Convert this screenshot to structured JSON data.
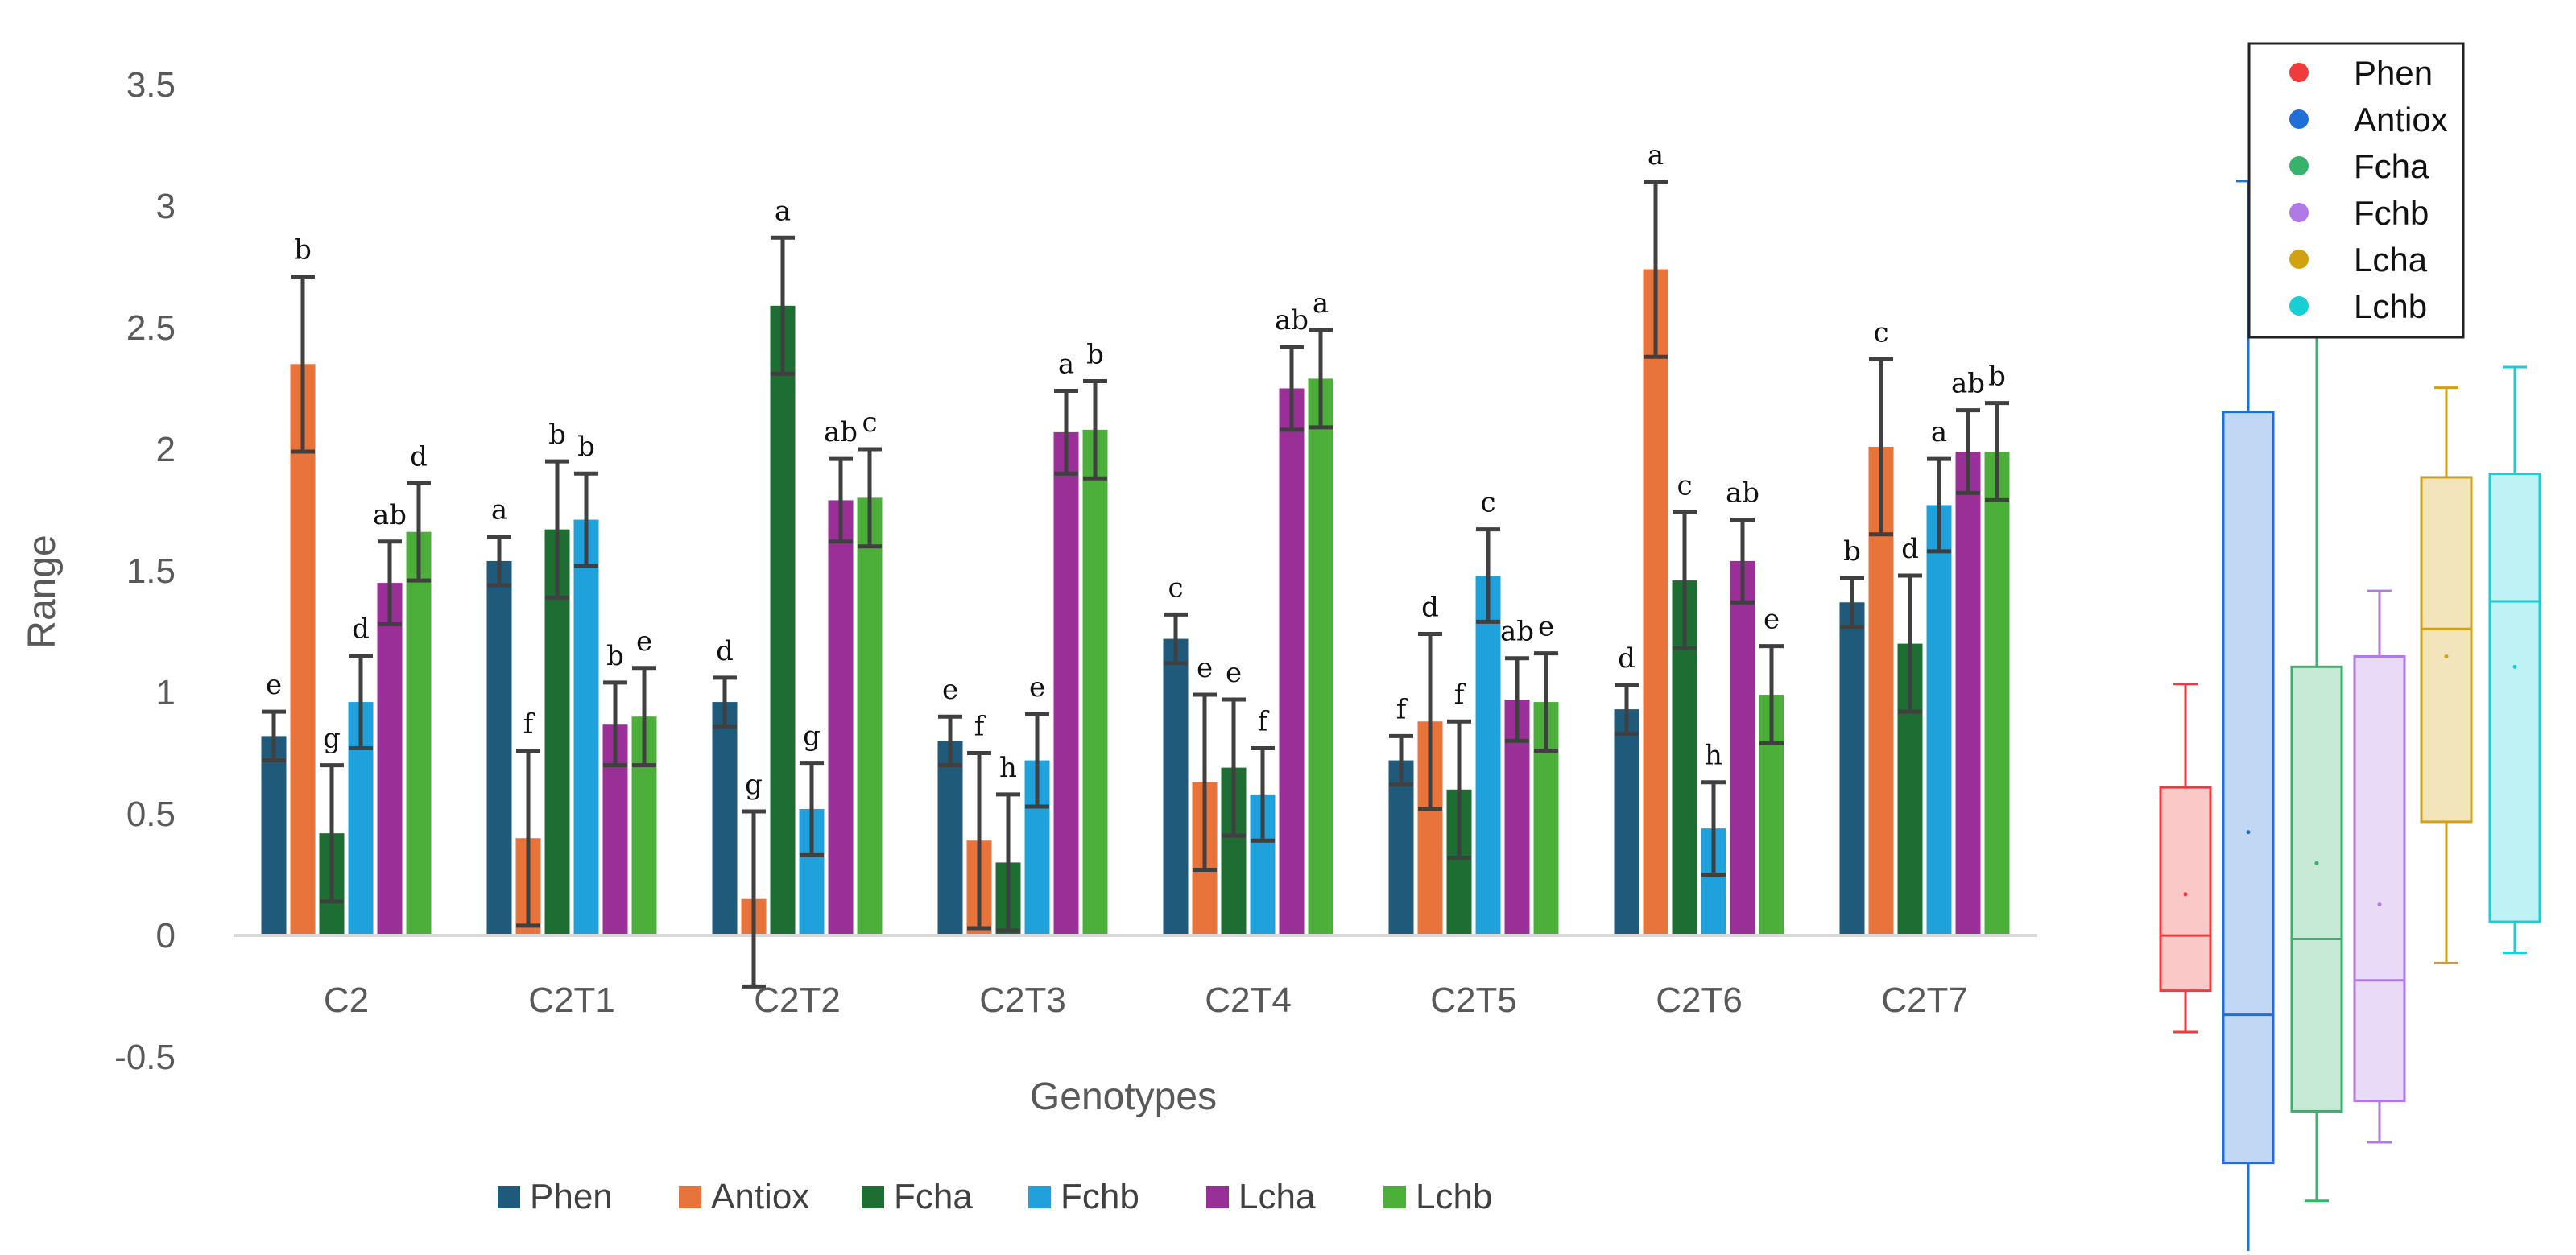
{
  "chart_data": [
    {
      "type": "bar",
      "xlabel": "Genotypes",
      "ylabel": "Range",
      "ylim": [
        -0.5,
        3.5
      ],
      "yticks": [
        "3.5",
        "3",
        "2.5",
        "2",
        "1.5",
        "1",
        "0.5",
        "0",
        "-0.5"
      ],
      "categories": [
        "C2",
        "C2T1",
        "C2T2",
        "C2T3",
        "C2T4",
        "C2T5",
        "C2T6",
        "C2T7"
      ],
      "legend_position": "bottom",
      "series": [
        {
          "name": "Phen",
          "color": "#1f5a7a",
          "values": [
            0.82,
            1.54,
            0.96,
            0.8,
            1.22,
            0.72,
            0.93,
            1.37
          ],
          "errors": [
            0.1,
            0.1,
            0.1,
            0.1,
            0.1,
            0.1,
            0.1,
            0.1
          ],
          "letters": [
            "e",
            "a",
            "d",
            "e",
            "c",
            "f",
            "d",
            "b"
          ]
        },
        {
          "name": "Antiox",
          "color": "#e8743b",
          "values": [
            2.35,
            0.4,
            0.15,
            0.39,
            0.63,
            0.88,
            2.74,
            2.01
          ],
          "errors": [
            0.36,
            0.36,
            0.36,
            0.36,
            0.36,
            0.36,
            0.36,
            0.36
          ],
          "letters": [
            "b",
            "f",
            "g",
            "f",
            "e",
            "d",
            "a",
            "c"
          ]
        },
        {
          "name": "Fcha",
          "color": "#1e6e34",
          "values": [
            0.42,
            1.67,
            2.59,
            0.3,
            0.69,
            0.6,
            1.46,
            1.2
          ],
          "errors": [
            0.28,
            0.28,
            0.28,
            0.28,
            0.28,
            0.28,
            0.28,
            0.28
          ],
          "letters": [
            "g",
            "b",
            "a",
            "h",
            "e",
            "f",
            "c",
            "d"
          ]
        },
        {
          "name": "Fchb",
          "color": "#1fa1dc",
          "values": [
            0.96,
            1.71,
            0.52,
            0.72,
            0.58,
            1.48,
            0.44,
            1.77
          ],
          "errors": [
            0.19,
            0.19,
            0.19,
            0.19,
            0.19,
            0.19,
            0.19,
            0.19
          ],
          "letters": [
            "d",
            "b",
            "g",
            "e",
            "f",
            "c",
            "h",
            "a"
          ]
        },
        {
          "name": "Lcha",
          "color": "#9b2f98",
          "values": [
            1.45,
            0.87,
            1.79,
            2.07,
            2.25,
            0.97,
            1.54,
            1.99
          ],
          "errors": [
            0.17,
            0.17,
            0.17,
            0.17,
            0.17,
            0.17,
            0.17,
            0.17
          ],
          "letters": [
            "ab",
            "b",
            "ab",
            "a",
            "ab",
            "ab",
            "ab",
            "ab"
          ]
        },
        {
          "name": "Lchb",
          "color": "#4caf3a",
          "values": [
            1.66,
            0.9,
            1.8,
            2.08,
            2.29,
            0.96,
            0.99,
            1.99
          ],
          "errors": [
            0.2,
            0.2,
            0.2,
            0.2,
            0.2,
            0.2,
            0.2,
            0.2
          ],
          "letters": [
            "d",
            "e",
            "c",
            "b",
            "a",
            "e",
            "e",
            "b"
          ]
        }
      ]
    },
    {
      "type": "box",
      "legend_position": "top-right",
      "ylim": [
        -1.0,
        2.5
      ],
      "series": [
        {
          "name": "Phen",
          "color": "#ef3b3b",
          "min": -0.25,
          "q1": -0.13,
          "median": 0.03,
          "q3": 0.46,
          "max": 0.76,
          "mean": 0.15
        },
        {
          "name": "Antiox",
          "color": "#1f6fd8",
          "min": -0.95,
          "q1": -0.63,
          "median": -0.2,
          "q3": 1.55,
          "max": 2.22,
          "mean": 0.33
        },
        {
          "name": "Fcha",
          "color": "#35b36b",
          "min": -0.74,
          "q1": -0.48,
          "median": 0.02,
          "q3": 0.81,
          "max": 2.04,
          "mean": 0.24
        },
        {
          "name": "Fchb",
          "color": "#b179e6",
          "min": -0.57,
          "q1": -0.45,
          "median": -0.1,
          "q3": 0.84,
          "max": 1.03,
          "mean": 0.12
        },
        {
          "name": "Lcha",
          "color": "#d1a10f",
          "min": -0.05,
          "q1": 0.36,
          "median": 0.92,
          "q3": 1.36,
          "max": 1.62,
          "mean": 0.84
        },
        {
          "name": "Lchb",
          "color": "#19cfd6",
          "min": -0.02,
          "q1": 0.07,
          "median": 1.0,
          "q3": 1.37,
          "max": 1.68,
          "mean": 0.81
        }
      ]
    }
  ]
}
